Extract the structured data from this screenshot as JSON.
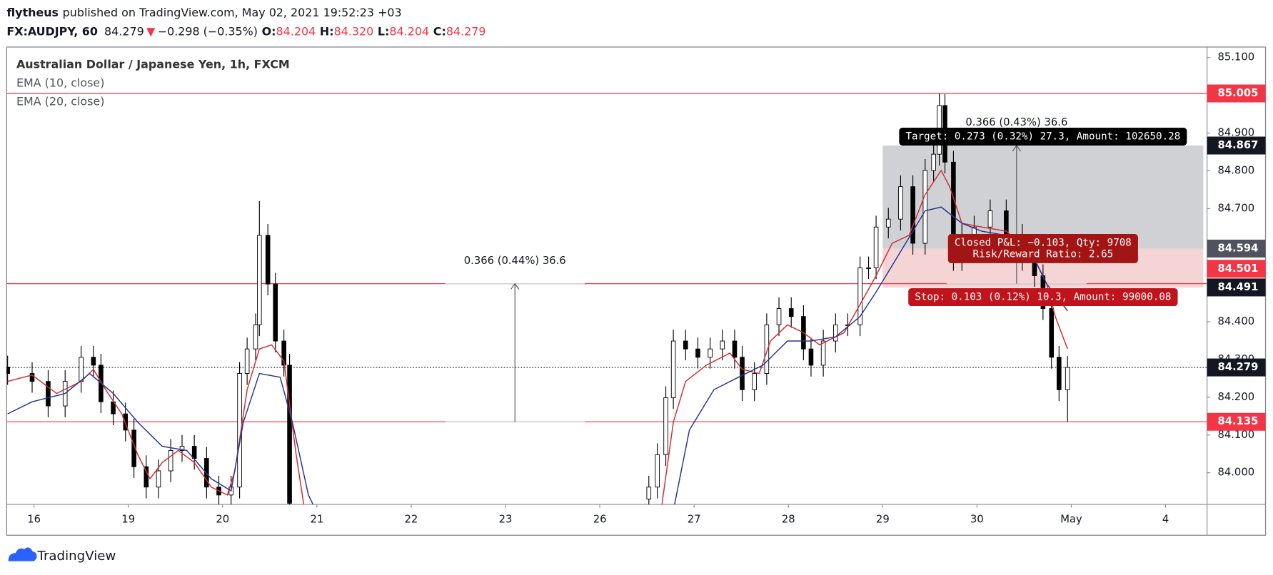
{
  "header": {
    "author": "flytheus",
    "published": "published on TradingView.com, May 02, 2021 19:52:23 +03",
    "symbol": "FX:AUDJPY, 60",
    "last": "84.279",
    "direction": "▼",
    "change": "−0.298 (−0.35%)",
    "ohlc": [
      {
        "key": "O:",
        "value": "84.204"
      },
      {
        "key": "H:",
        "value": "84.320"
      },
      {
        "key": "L:",
        "value": "84.204"
      },
      {
        "key": "C:",
        "value": "84.279"
      }
    ]
  },
  "chart_data": {
    "type": "candlestick",
    "title": "Australian Dollar / Japanese Yen, 1h, FXCM",
    "xlim": [
      -0.29,
      12.44
    ],
    "ylim": [
      83.916,
      85.128
    ],
    "xticks": [
      {
        "value": 0,
        "label": "16"
      },
      {
        "value": 1,
        "label": "19"
      },
      {
        "value": 2,
        "label": "20"
      },
      {
        "value": 3,
        "label": "21"
      },
      {
        "value": 4,
        "label": "22"
      },
      {
        "value": 5,
        "label": "23"
      },
      {
        "value": 6,
        "label": "26"
      },
      {
        "value": 7,
        "label": "27"
      },
      {
        "value": 8,
        "label": "28"
      },
      {
        "value": 9,
        "label": "29"
      },
      {
        "value": 10,
        "label": "30"
      },
      {
        "value": 11,
        "label": "May"
      },
      {
        "value": 12,
        "label": "4"
      }
    ],
    "yticks": [
      {
        "value": 85.1,
        "label": "85.100"
      },
      {
        "value": 84.9,
        "label": "84.900"
      },
      {
        "value": 84.8,
        "label": "84.800"
      },
      {
        "value": 84.7,
        "label": "84.700"
      },
      {
        "value": 84.4,
        "label": "84.400"
      },
      {
        "value": 84.3,
        "label": "84.300"
      },
      {
        "value": 84.2,
        "label": "84.200"
      },
      {
        "value": 84.1,
        "label": "84.100"
      },
      {
        "value": 84.0,
        "label": "84.000"
      }
    ],
    "candles": {
      "up_color": "#ffffff",
      "down_color": "#000000",
      "x": [
        -0.28,
        -0.02,
        0.15,
        0.33,
        0.5,
        0.63,
        0.71,
        0.84,
        0.97,
        1.06,
        1.19,
        1.32,
        1.45,
        1.57,
        1.7,
        1.83,
        1.96,
        2.09,
        2.18,
        2.26,
        2.35,
        2.39,
        2.48,
        2.56,
        2.65,
        2.71,
        6.52,
        6.61,
        6.7,
        6.78,
        6.91,
        7.04,
        7.17,
        7.3,
        7.43,
        7.51,
        7.64,
        7.77,
        7.9,
        8.03,
        8.16,
        8.24,
        8.37,
        8.5,
        8.63,
        8.76,
        8.85,
        8.93,
        9.06,
        9.19,
        9.32,
        9.45,
        9.54,
        9.6,
        9.66,
        9.75,
        9.84,
        9.97,
        10.14,
        10.31,
        10.48,
        10.61,
        10.7,
        10.79,
        10.87,
        10.96
      ],
      "open": [
        84.28,
        84.263,
        84.242,
        84.177,
        84.242,
        84.306,
        84.285,
        84.188,
        84.156,
        84.113,
        84.016,
        83.962,
        84.005,
        84.059,
        84.07,
        84.038,
        83.962,
        83.941,
        83.962,
        84.263,
        84.328,
        84.392,
        84.629,
        84.5,
        84.349,
        84.285,
        83.93,
        83.962,
        84.048,
        84.199,
        84.349,
        84.328,
        84.306,
        84.328,
        84.349,
        84.306,
        84.22,
        84.263,
        84.392,
        84.435,
        84.414,
        84.328,
        84.285,
        84.349,
        84.392,
        84.392,
        84.543,
        84.543,
        84.651,
        84.672,
        84.758,
        84.608,
        84.801,
        84.844,
        84.973,
        84.823,
        84.565,
        84.629,
        84.651,
        84.694,
        84.629,
        84.565,
        84.522,
        84.435,
        84.306,
        84.22
      ],
      "high": [
        84.31,
        84.293,
        84.272,
        84.272,
        84.336,
        84.336,
        84.315,
        84.218,
        84.186,
        84.143,
        84.046,
        84.035,
        84.089,
        84.1,
        84.1,
        84.068,
        83.992,
        83.992,
        84.293,
        84.358,
        84.422,
        84.72,
        84.659,
        84.53,
        84.379,
        84.315,
        83.992,
        84.078,
        84.229,
        84.379,
        84.379,
        84.358,
        84.358,
        84.379,
        84.379,
        84.336,
        84.293,
        84.422,
        84.465,
        84.465,
        84.444,
        84.358,
        84.379,
        84.422,
        84.422,
        84.573,
        84.573,
        84.681,
        84.702,
        84.788,
        84.788,
        84.831,
        84.874,
        85.005,
        85.003,
        84.853,
        84.659,
        84.681,
        84.724,
        84.724,
        84.659,
        84.595,
        84.552,
        84.465,
        84.336,
        84.309
      ],
      "low": [
        84.233,
        84.212,
        84.147,
        84.147,
        84.212,
        84.255,
        84.158,
        84.126,
        84.083,
        83.986,
        83.932,
        83.932,
        83.975,
        84.029,
        84.008,
        83.932,
        83.911,
        83.911,
        83.932,
        84.233,
        84.298,
        84.362,
        84.47,
        84.319,
        84.255,
        83.889,
        83.9,
        83.932,
        84.018,
        84.169,
        84.298,
        84.276,
        84.276,
        84.298,
        84.276,
        84.19,
        84.19,
        84.233,
        84.362,
        84.384,
        84.298,
        84.255,
        84.255,
        84.319,
        84.362,
        84.362,
        84.513,
        84.513,
        84.621,
        84.642,
        84.578,
        84.578,
        84.771,
        84.814,
        84.793,
        84.535,
        84.535,
        84.599,
        84.621,
        84.599,
        84.535,
        84.492,
        84.405,
        84.276,
        84.19,
        84.135
      ],
      "close": [
        84.263,
        84.242,
        84.177,
        84.242,
        84.306,
        84.285,
        84.188,
        84.156,
        84.113,
        84.016,
        83.962,
        84.005,
        84.059,
        84.07,
        84.038,
        83.962,
        83.941,
        83.962,
        84.263,
        84.328,
        84.392,
        84.629,
        84.5,
        84.349,
        84.285,
        83.919,
        83.962,
        84.048,
        84.199,
        84.349,
        84.328,
        84.306,
        84.328,
        84.349,
        84.306,
        84.22,
        84.263,
        84.392,
        84.435,
        84.414,
        84.328,
        84.285,
        84.349,
        84.392,
        84.392,
        84.543,
        84.543,
        84.651,
        84.672,
        84.758,
        84.608,
        84.801,
        84.844,
        84.973,
        84.823,
        84.565,
        84.629,
        84.651,
        84.694,
        84.629,
        84.565,
        84.522,
        84.435,
        84.306,
        84.22,
        84.279
      ]
    },
    "series": [
      {
        "name": "EMA (10, close)",
        "color": "#d32f2f",
        "x": [
          -0.28,
          -0.02,
          0.24,
          0.5,
          0.63,
          0.76,
          0.93,
          1.1,
          1.23,
          1.36,
          1.53,
          1.7,
          1.88,
          2.05,
          2.13,
          2.26,
          2.39,
          2.52,
          2.65,
          2.78,
          2.87,
          4.6,
          6.65,
          6.78,
          6.91,
          7.13,
          7.38,
          7.51,
          7.69,
          7.81,
          7.99,
          8.16,
          8.33,
          8.59,
          8.76,
          8.93,
          9.1,
          9.28,
          9.45,
          9.62,
          9.71,
          9.84,
          10.05,
          10.31,
          10.57,
          10.74,
          10.83,
          10.96
        ],
        "values": [
          84.242,
          84.259,
          84.21,
          84.242,
          84.274,
          84.22,
          84.156,
          84.048,
          83.984,
          84.027,
          84.059,
          84.027,
          83.962,
          83.941,
          84.005,
          84.22,
          84.328,
          84.339,
          84.296,
          84.048,
          83.9,
          null,
          83.9,
          84.134,
          84.242,
          84.285,
          84.317,
          84.274,
          84.263,
          84.349,
          84.392,
          84.371,
          84.339,
          84.371,
          84.446,
          84.522,
          84.608,
          84.629,
          84.737,
          84.801,
          84.758,
          84.661,
          84.651,
          84.64,
          84.586,
          84.5,
          84.414,
          84.328
        ]
      },
      {
        "name": "EMA (20, close)",
        "color": "#283593",
        "x": [
          -0.28,
          -0.02,
          0.33,
          0.59,
          0.84,
          1.1,
          1.36,
          1.62,
          1.88,
          2.09,
          2.22,
          2.39,
          2.61,
          2.74,
          2.91,
          2.99,
          4.6,
          6.78,
          6.95,
          7.21,
          7.47,
          7.73,
          7.99,
          8.24,
          8.5,
          8.76,
          8.93,
          9.19,
          9.45,
          9.62,
          9.84,
          10.05,
          10.31,
          10.57,
          10.74,
          10.96
        ],
        "values": [
          84.156,
          84.188,
          84.21,
          84.263,
          84.21,
          84.134,
          84.07,
          84.059,
          83.984,
          83.952,
          84.134,
          84.263,
          84.253,
          84.134,
          83.941,
          83.9,
          null,
          83.9,
          84.113,
          84.22,
          84.253,
          84.285,
          84.349,
          84.349,
          84.36,
          84.414,
          84.479,
          84.586,
          84.694,
          84.704,
          84.661,
          84.64,
          84.629,
          84.586,
          84.5,
          84.429
        ]
      }
    ],
    "price_labels": [
      {
        "value": 85.005,
        "label": "85.005",
        "color": "#f23645",
        "line": "solid"
      },
      {
        "value": 84.867,
        "label": "84.867",
        "color": "#131722"
      },
      {
        "value": 84.594,
        "label": "84.594",
        "color": "#50535e"
      },
      {
        "value": 84.501,
        "label": "84.501",
        "color": "#f23645",
        "line": "solid"
      },
      {
        "value": 84.491,
        "label": "84.491",
        "color": "#131722"
      },
      {
        "value": 84.279,
        "label": "84.279",
        "color": "#131722",
        "line": "dotted"
      },
      {
        "value": 84.135,
        "label": "84.135",
        "color": "#f23645",
        "line": "solid"
      }
    ],
    "measures": [
      {
        "x": 5.1,
        "from": 84.135,
        "to": 84.501,
        "label": "0.366 (0.44%) 36.6"
      },
      {
        "x": 10.42,
        "from": 84.501,
        "to": 84.867,
        "label": "0.366 (0.43%) 36.6"
      }
    ],
    "position": {
      "x0": 9.0,
      "x1": 12.4,
      "entry": 84.594,
      "target": 84.867,
      "stop": 84.491,
      "target_label": "Target: 0.273 (0.32%) 27.3, Amount: 102650.28",
      "pnl_label": "Closed P&L: −0.103, Qty: 9708",
      "rr_label": "Risk/Reward Ratio: 2.65",
      "stop_label": "Stop: 0.103 (0.12%) 10.3, Amount: 99000.08"
    }
  },
  "footer": {
    "brand": "TradingView"
  }
}
